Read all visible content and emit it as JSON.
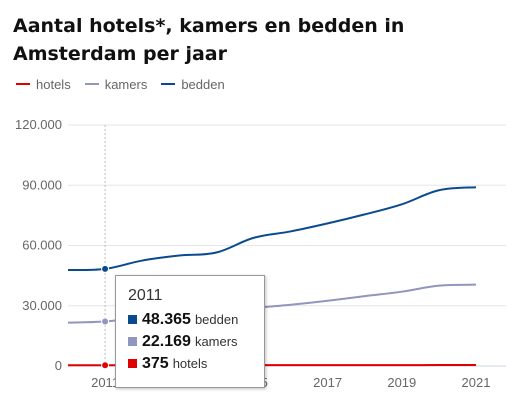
{
  "title": "Aantal hotels*, kamers en bedden in Amsterdam per jaar",
  "legend": [
    {
      "name": "hotels",
      "color": "#e00000"
    },
    {
      "name": "kamers",
      "color": "#9096bd"
    },
    {
      "name": "bedden",
      "color": "#0b4a8f"
    }
  ],
  "tooltip": {
    "year": "2011",
    "rows": [
      {
        "value": "48.365",
        "label": "bedden",
        "color": "#0b4a8f"
      },
      {
        "value": "22.169",
        "label": "kamers",
        "color": "#9096bd"
      },
      {
        "value": "375",
        "label": "hotels",
        "color": "#e00000"
      }
    ]
  },
  "chart_data": {
    "type": "line",
    "x": [
      2010,
      2011,
      2012,
      2013,
      2014,
      2015,
      2016,
      2017,
      2018,
      2019,
      2020,
      2021
    ],
    "series": [
      {
        "name": "bedden",
        "color": "#0b4a8f",
        "values": [
          47800,
          48365,
          52500,
          55000,
          56500,
          63800,
          67000,
          71000,
          75500,
          80500,
          87500,
          89000
        ]
      },
      {
        "name": "kamers",
        "color": "#9096bd",
        "values": [
          21600,
          22169,
          24000,
          25500,
          26500,
          28800,
          30500,
          32500,
          34800,
          37000,
          40000,
          40500
        ]
      },
      {
        "name": "hotels",
        "color": "#e00000",
        "values": [
          360,
          375,
          390,
          400,
          410,
          420,
          430,
          440,
          450,
          460,
          470,
          480
        ]
      }
    ],
    "yticks": [
      "0",
      "30.000",
      "60.000",
      "90.000",
      "120.000"
    ],
    "ylim": [
      0,
      120000
    ],
    "xticks": [
      "2011",
      "2013",
      "2015",
      "2017",
      "2019",
      "2021"
    ],
    "highlight_year": 2011,
    "grid": true
  }
}
